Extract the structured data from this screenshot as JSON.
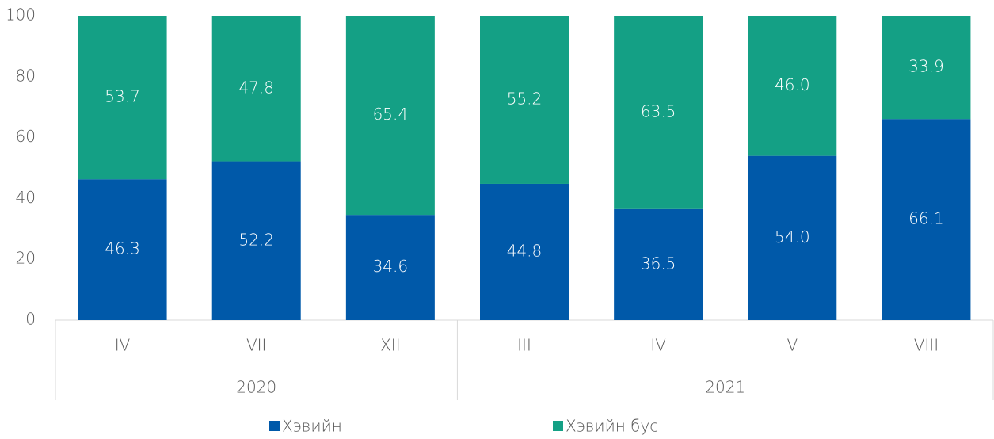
{
  "chart_data": {
    "type": "stacked_bar",
    "groups": [
      {
        "name": "2020",
        "categories": [
          "IV",
          "VII",
          "XII"
        ]
      },
      {
        "name": "2021",
        "categories": [
          "III",
          "IV",
          "V",
          "VIII"
        ]
      }
    ],
    "series": [
      {
        "name": "Хэвийн",
        "color": "#0059a9",
        "values": [
          46.3,
          52.2,
          34.6,
          44.8,
          36.5,
          54.0,
          66.1
        ],
        "value_labels": [
          "46.3",
          "52.2",
          "34.6",
          "44.8",
          "36.5",
          "54.0",
          "66.1"
        ]
      },
      {
        "name": "Хэвийн бус",
        "color": "#14a085",
        "values": [
          53.7,
          47.8,
          65.4,
          55.2,
          63.5,
          46.0,
          33.9
        ],
        "value_labels": [
          "53.7",
          "47.8",
          "65.4",
          "55.2",
          "63.5",
          "46.0",
          "33.9"
        ]
      }
    ],
    "ylim": [
      0,
      100
    ],
    "yticks": [
      0,
      20,
      40,
      60,
      80,
      100
    ],
    "legend": "bottom"
  }
}
